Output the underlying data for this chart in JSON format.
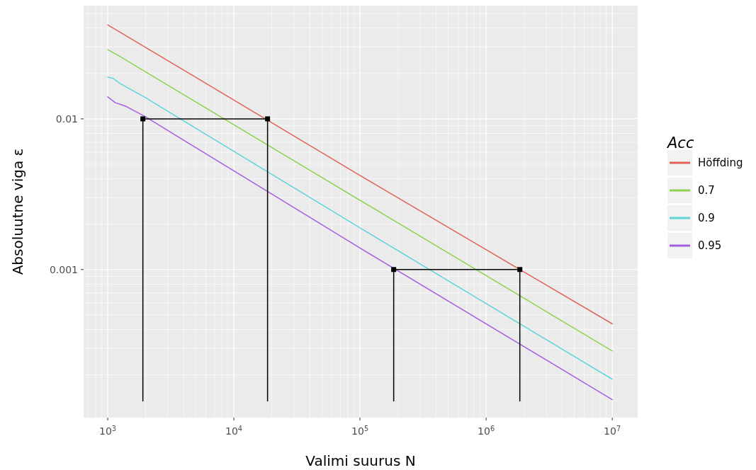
{
  "chart_data": {
    "type": "line",
    "xlabel": "Valimi suurus N",
    "ylabel": "Absoluutne viga ε",
    "legend_title": "Acc",
    "log": "xy",
    "grid": true,
    "legend": "right",
    "xlim": [
      644,
      15900000
    ],
    "ylim": [
      0.000104,
      0.0564
    ],
    "xticks": [
      {
        "value": 1000,
        "label": "10$^{3}$"
      },
      {
        "value": 10000,
        "label": "10$^{4}$"
      },
      {
        "value": 100000,
        "label": "10$^{5}$"
      },
      {
        "value": 1000000,
        "label": "10$^{6}$"
      },
      {
        "value": 10000000,
        "label": "10$^{7}$"
      }
    ],
    "yticks": [
      0.01,
      0.001
    ],
    "series": [
      {
        "name": "Höffding",
        "color": "#e0645a",
        "x": [
          1000,
          100000,
          10000000
        ],
        "values": [
          0.0421,
          0.00421,
          0.000436
        ]
      },
      {
        "name": "0.7",
        "color": "#8fd14f",
        "x": [
          1000,
          1200,
          2000,
          100000,
          10000000
        ],
        "values": [
          0.0288,
          0.0265,
          0.0205,
          0.00288,
          0.000288
        ]
      },
      {
        "name": "0.9",
        "color": "#5fd4d8",
        "x": [
          1000,
          1100,
          1250,
          2000,
          100000,
          10000000
        ],
        "values": [
          0.0189,
          0.0186,
          0.0172,
          0.0138,
          0.00189,
          0.000187
        ]
      },
      {
        "name": "0.95",
        "color": "#a25fe0",
        "x": [
          1000,
          1150,
          1400,
          2000,
          100000,
          10000000
        ],
        "values": [
          0.014,
          0.0128,
          0.0121,
          0.0103,
          0.00139,
          0.000137
        ]
      },
      {
        "color": "#000000",
        "x": [
          1900,
          1900,
          18500,
          18500
        ],
        "values": [
          0.000134,
          0.01,
          0.01,
          0.000134
        ]
      },
      {
        "color": "#000000",
        "x": [
          185000,
          185000,
          1850000,
          1850000
        ],
        "values": [
          0.000134,
          0.001,
          0.001,
          0.000134
        ]
      },
      {
        "type": "scatter",
        "marker": "square",
        "color": "#000000",
        "x": [
          1900,
          18500,
          185000,
          1850000
        ],
        "values": [
          0.01,
          0.01,
          0.001,
          0.001
        ]
      }
    ]
  }
}
